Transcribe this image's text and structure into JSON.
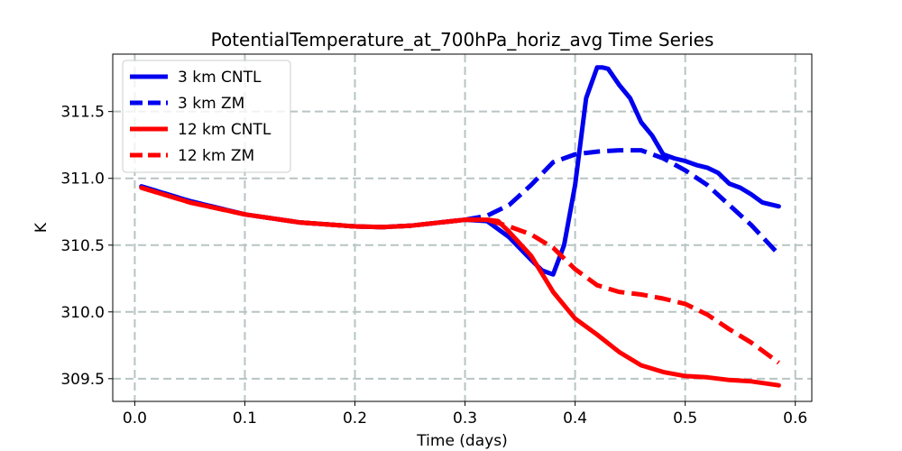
{
  "chart_data": {
    "type": "line",
    "title": "PotentialTemperature_at_700hPa_horiz_avg Time Series",
    "xlabel": "Time (days)",
    "ylabel": "K",
    "xlim": [
      -0.02,
      0.615
    ],
    "ylim": [
      309.33,
      311.93
    ],
    "xticks": [
      0.0,
      0.1,
      0.2,
      0.3,
      0.4,
      0.5,
      0.6
    ],
    "xtick_labels": [
      "0.0",
      "0.1",
      "0.2",
      "0.3",
      "0.4",
      "0.5",
      "0.6"
    ],
    "yticks": [
      309.5,
      310.0,
      310.5,
      311.0,
      311.5
    ],
    "ytick_labels": [
      "309.5",
      "310.0",
      "310.5",
      "311.0",
      "311.5"
    ],
    "grid": true,
    "legend_position": "top-left",
    "series": [
      {
        "name": "3 km CNTL",
        "color": "#0000ee",
        "style": "solid",
        "x": [
          0.006,
          0.05,
          0.1,
          0.15,
          0.2,
          0.225,
          0.25,
          0.3,
          0.32,
          0.34,
          0.36,
          0.37,
          0.38,
          0.39,
          0.4,
          0.41,
          0.42,
          0.425,
          0.43,
          0.44,
          0.45,
          0.46,
          0.47,
          0.48,
          0.49,
          0.5,
          0.51,
          0.52,
          0.53,
          0.54,
          0.55,
          0.56,
          0.57,
          0.585
        ],
        "y": [
          310.94,
          310.83,
          310.73,
          310.67,
          310.64,
          310.635,
          310.645,
          310.69,
          310.68,
          310.56,
          310.39,
          310.31,
          310.28,
          310.5,
          310.95,
          311.6,
          311.83,
          311.83,
          311.82,
          311.7,
          311.6,
          311.42,
          311.32,
          311.18,
          311.15,
          311.13,
          311.1,
          311.08,
          311.04,
          310.96,
          310.93,
          310.88,
          310.82,
          310.79
        ]
      },
      {
        "name": "3 km ZM",
        "color": "#0000ee",
        "style": "dashed",
        "x": [
          0.006,
          0.05,
          0.1,
          0.15,
          0.2,
          0.225,
          0.25,
          0.3,
          0.32,
          0.34,
          0.36,
          0.38,
          0.4,
          0.42,
          0.44,
          0.46,
          0.48,
          0.5,
          0.52,
          0.54,
          0.56,
          0.585
        ],
        "y": [
          310.94,
          310.83,
          310.73,
          310.67,
          310.64,
          310.635,
          310.645,
          310.69,
          310.72,
          310.8,
          310.95,
          311.12,
          311.18,
          311.2,
          311.21,
          311.21,
          311.15,
          311.06,
          310.95,
          310.8,
          310.65,
          310.43
        ]
      },
      {
        "name": "12 km CNTL",
        "color": "#ff0000",
        "style": "solid",
        "x": [
          0.006,
          0.05,
          0.1,
          0.15,
          0.2,
          0.225,
          0.25,
          0.3,
          0.32,
          0.33,
          0.34,
          0.36,
          0.38,
          0.4,
          0.42,
          0.44,
          0.46,
          0.48,
          0.5,
          0.52,
          0.54,
          0.56,
          0.585
        ],
        "y": [
          310.93,
          310.82,
          310.73,
          310.67,
          310.64,
          310.635,
          310.645,
          310.69,
          310.69,
          310.68,
          310.6,
          310.42,
          310.15,
          309.95,
          309.83,
          309.7,
          309.6,
          309.55,
          309.52,
          309.51,
          309.49,
          309.48,
          309.45
        ]
      },
      {
        "name": "12 km ZM",
        "color": "#ff0000",
        "style": "dashed",
        "x": [
          0.006,
          0.05,
          0.1,
          0.15,
          0.2,
          0.225,
          0.25,
          0.3,
          0.32,
          0.34,
          0.36,
          0.38,
          0.4,
          0.42,
          0.44,
          0.46,
          0.48,
          0.5,
          0.52,
          0.54,
          0.56,
          0.585
        ],
        "y": [
          310.93,
          310.82,
          310.73,
          310.67,
          310.64,
          310.635,
          310.645,
          310.69,
          310.69,
          310.64,
          310.58,
          310.48,
          310.32,
          310.2,
          310.15,
          310.13,
          310.1,
          310.06,
          309.98,
          309.87,
          309.77,
          309.62
        ]
      }
    ]
  }
}
